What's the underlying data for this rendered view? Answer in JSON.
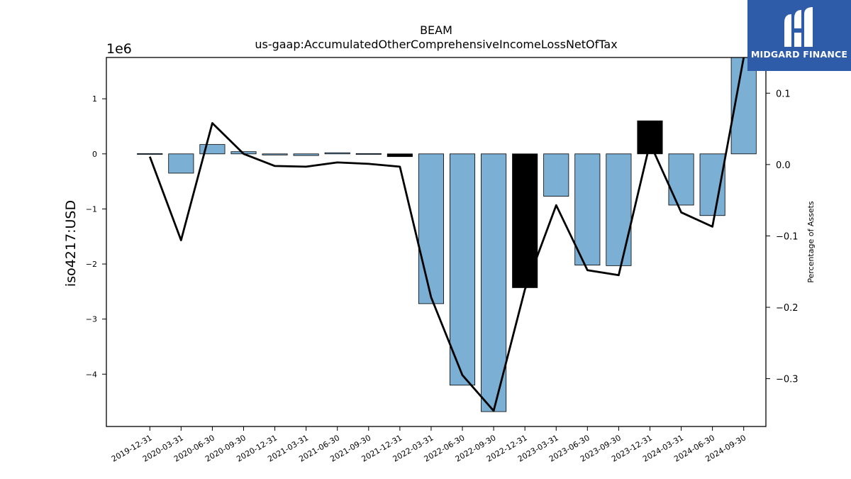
{
  "chart_data": {
    "type": "bar",
    "title": "BEAM",
    "subtitle": "us-gaap:AccumulatedOtherComprehensiveIncomeLossNetOfTax",
    "ylabel": "iso4217:USD",
    "y2label": "Percentage of Assets",
    "y_scale_label": "1e6",
    "ylim": [
      -4.95,
      1.75
    ],
    "y2lim": [
      -0.367,
      0.15
    ],
    "yticks": [
      1,
      0,
      -1,
      -2,
      -3,
      -4
    ],
    "y2ticks": [
      0.1,
      0.0,
      -0.1,
      -0.2,
      -0.3
    ],
    "categories": [
      "2019-12-31",
      "2020-03-31",
      "2020-06-30",
      "2020-09-30",
      "2020-12-31",
      "2021-03-31",
      "2021-06-30",
      "2021-09-30",
      "2021-12-31",
      "2022-03-31",
      "2022-06-30",
      "2022-09-30",
      "2022-12-31",
      "2023-03-31",
      "2023-06-30",
      "2023-09-30",
      "2023-12-31",
      "2024-03-31",
      "2024-06-30",
      "2024-09-30"
    ],
    "series": [
      {
        "type": "bar",
        "axis": "left",
        "values": [
          0.005,
          -0.35,
          0.17,
          0.04,
          -0.02,
          -0.03,
          0.02,
          0.005,
          -0.05,
          -2.72,
          -4.2,
          -4.68,
          -2.43,
          -0.77,
          -2.02,
          -2.03,
          0.6,
          -0.93,
          -1.12,
          1.76
        ],
        "highlight": [
          false,
          false,
          false,
          false,
          false,
          false,
          false,
          false,
          true,
          false,
          false,
          false,
          true,
          false,
          false,
          false,
          true,
          false,
          false,
          false
        ]
      },
      {
        "type": "line",
        "axis": "right",
        "values": [
          0.011,
          -0.106,
          0.058,
          0.015,
          -0.002,
          -0.003,
          0.003,
          0.001,
          -0.003,
          -0.186,
          -0.295,
          -0.345,
          -0.175,
          -0.057,
          -0.148,
          -0.155,
          0.03,
          -0.067,
          -0.087,
          0.154
        ]
      }
    ],
    "colors": {
      "bar": "#7bafd4",
      "bar_highlight": "#000000",
      "line": "#000000"
    },
    "grid": false
  },
  "logo": {
    "text": "MIDGARD FINANCE",
    "color": "#2f5ca8"
  }
}
